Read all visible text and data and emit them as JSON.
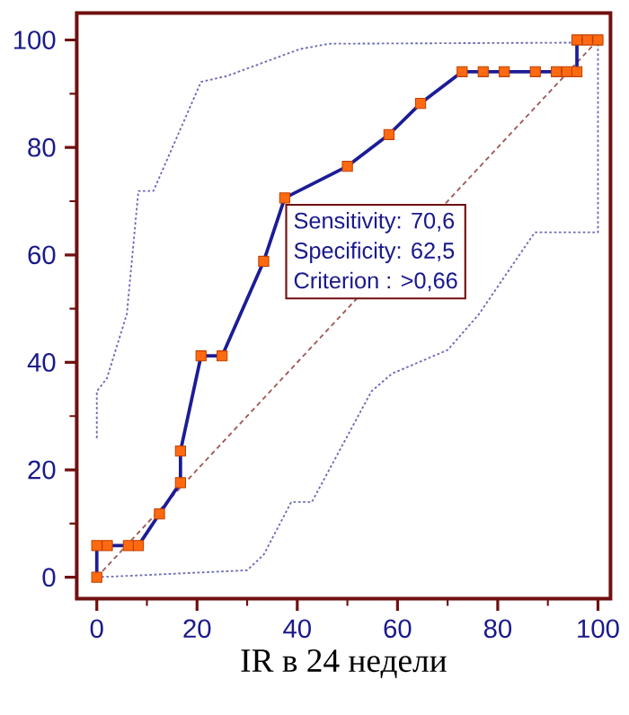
{
  "chart_data": {
    "type": "line",
    "xlabel": "IR в 24 недели",
    "xlim": [
      -4,
      102.5
    ],
    "ylim": [
      -4,
      105
    ],
    "xticks": [
      0,
      20,
      40,
      60,
      80,
      100
    ],
    "yticks": [
      0,
      20,
      40,
      60,
      80,
      100
    ],
    "annotations": [
      "Sensitivity: 70,6",
      "Specificity: 62,5",
      "Criterion : >0,66"
    ],
    "series": [
      {
        "x": [
          0,
          0,
          2,
          6,
          8.3,
          11.3,
          20.8,
          26,
          40.5,
          46.4,
          95,
          100
        ],
        "values": [
          25.9,
          34.6,
          37,
          49,
          71.9,
          71.9,
          92.2,
          93.3,
          98.3,
          99.3,
          99.5,
          100
        ],
        "color": "#6b6bb8",
        "line_style": "dotted",
        "marker": "none"
      },
      {
        "x": [
          0,
          30,
          33.3,
          38.8,
          42.9,
          54.8,
          58.9,
          70,
          76.2,
          87.4,
          100,
          100
        ],
        "values": [
          0,
          1.3,
          4.2,
          14,
          14,
          34.6,
          37.9,
          42.3,
          48.9,
          64.2,
          64.2,
          100
        ],
        "color": "#6b6bb8",
        "line_style": "dotted",
        "marker": "none"
      },
      {
        "x": [
          0,
          100
        ],
        "values": [
          0,
          100
        ],
        "color": "#a05a5a",
        "line_style": "dashed",
        "marker": "none"
      },
      {
        "x": [
          0,
          0,
          2.1,
          6.3,
          8.3,
          12.5,
          16.7,
          16.7,
          20.8,
          25,
          33.3,
          37.5,
          50,
          58.3,
          64.6,
          72.9,
          77.1,
          81.3,
          87.5,
          91.7,
          93.8,
          95.8,
          95.8,
          97.9,
          100
        ],
        "values": [
          0,
          5.9,
          5.9,
          5.9,
          5.9,
          11.8,
          17.6,
          23.5,
          41.2,
          41.2,
          58.8,
          70.6,
          76.5,
          82.4,
          88.2,
          94.1,
          94.1,
          94.1,
          94.1,
          94.1,
          94.1,
          94.1,
          100,
          100,
          100
        ],
        "color": "#1c1c96",
        "line_style": "solid",
        "marker": "square"
      }
    ]
  }
}
